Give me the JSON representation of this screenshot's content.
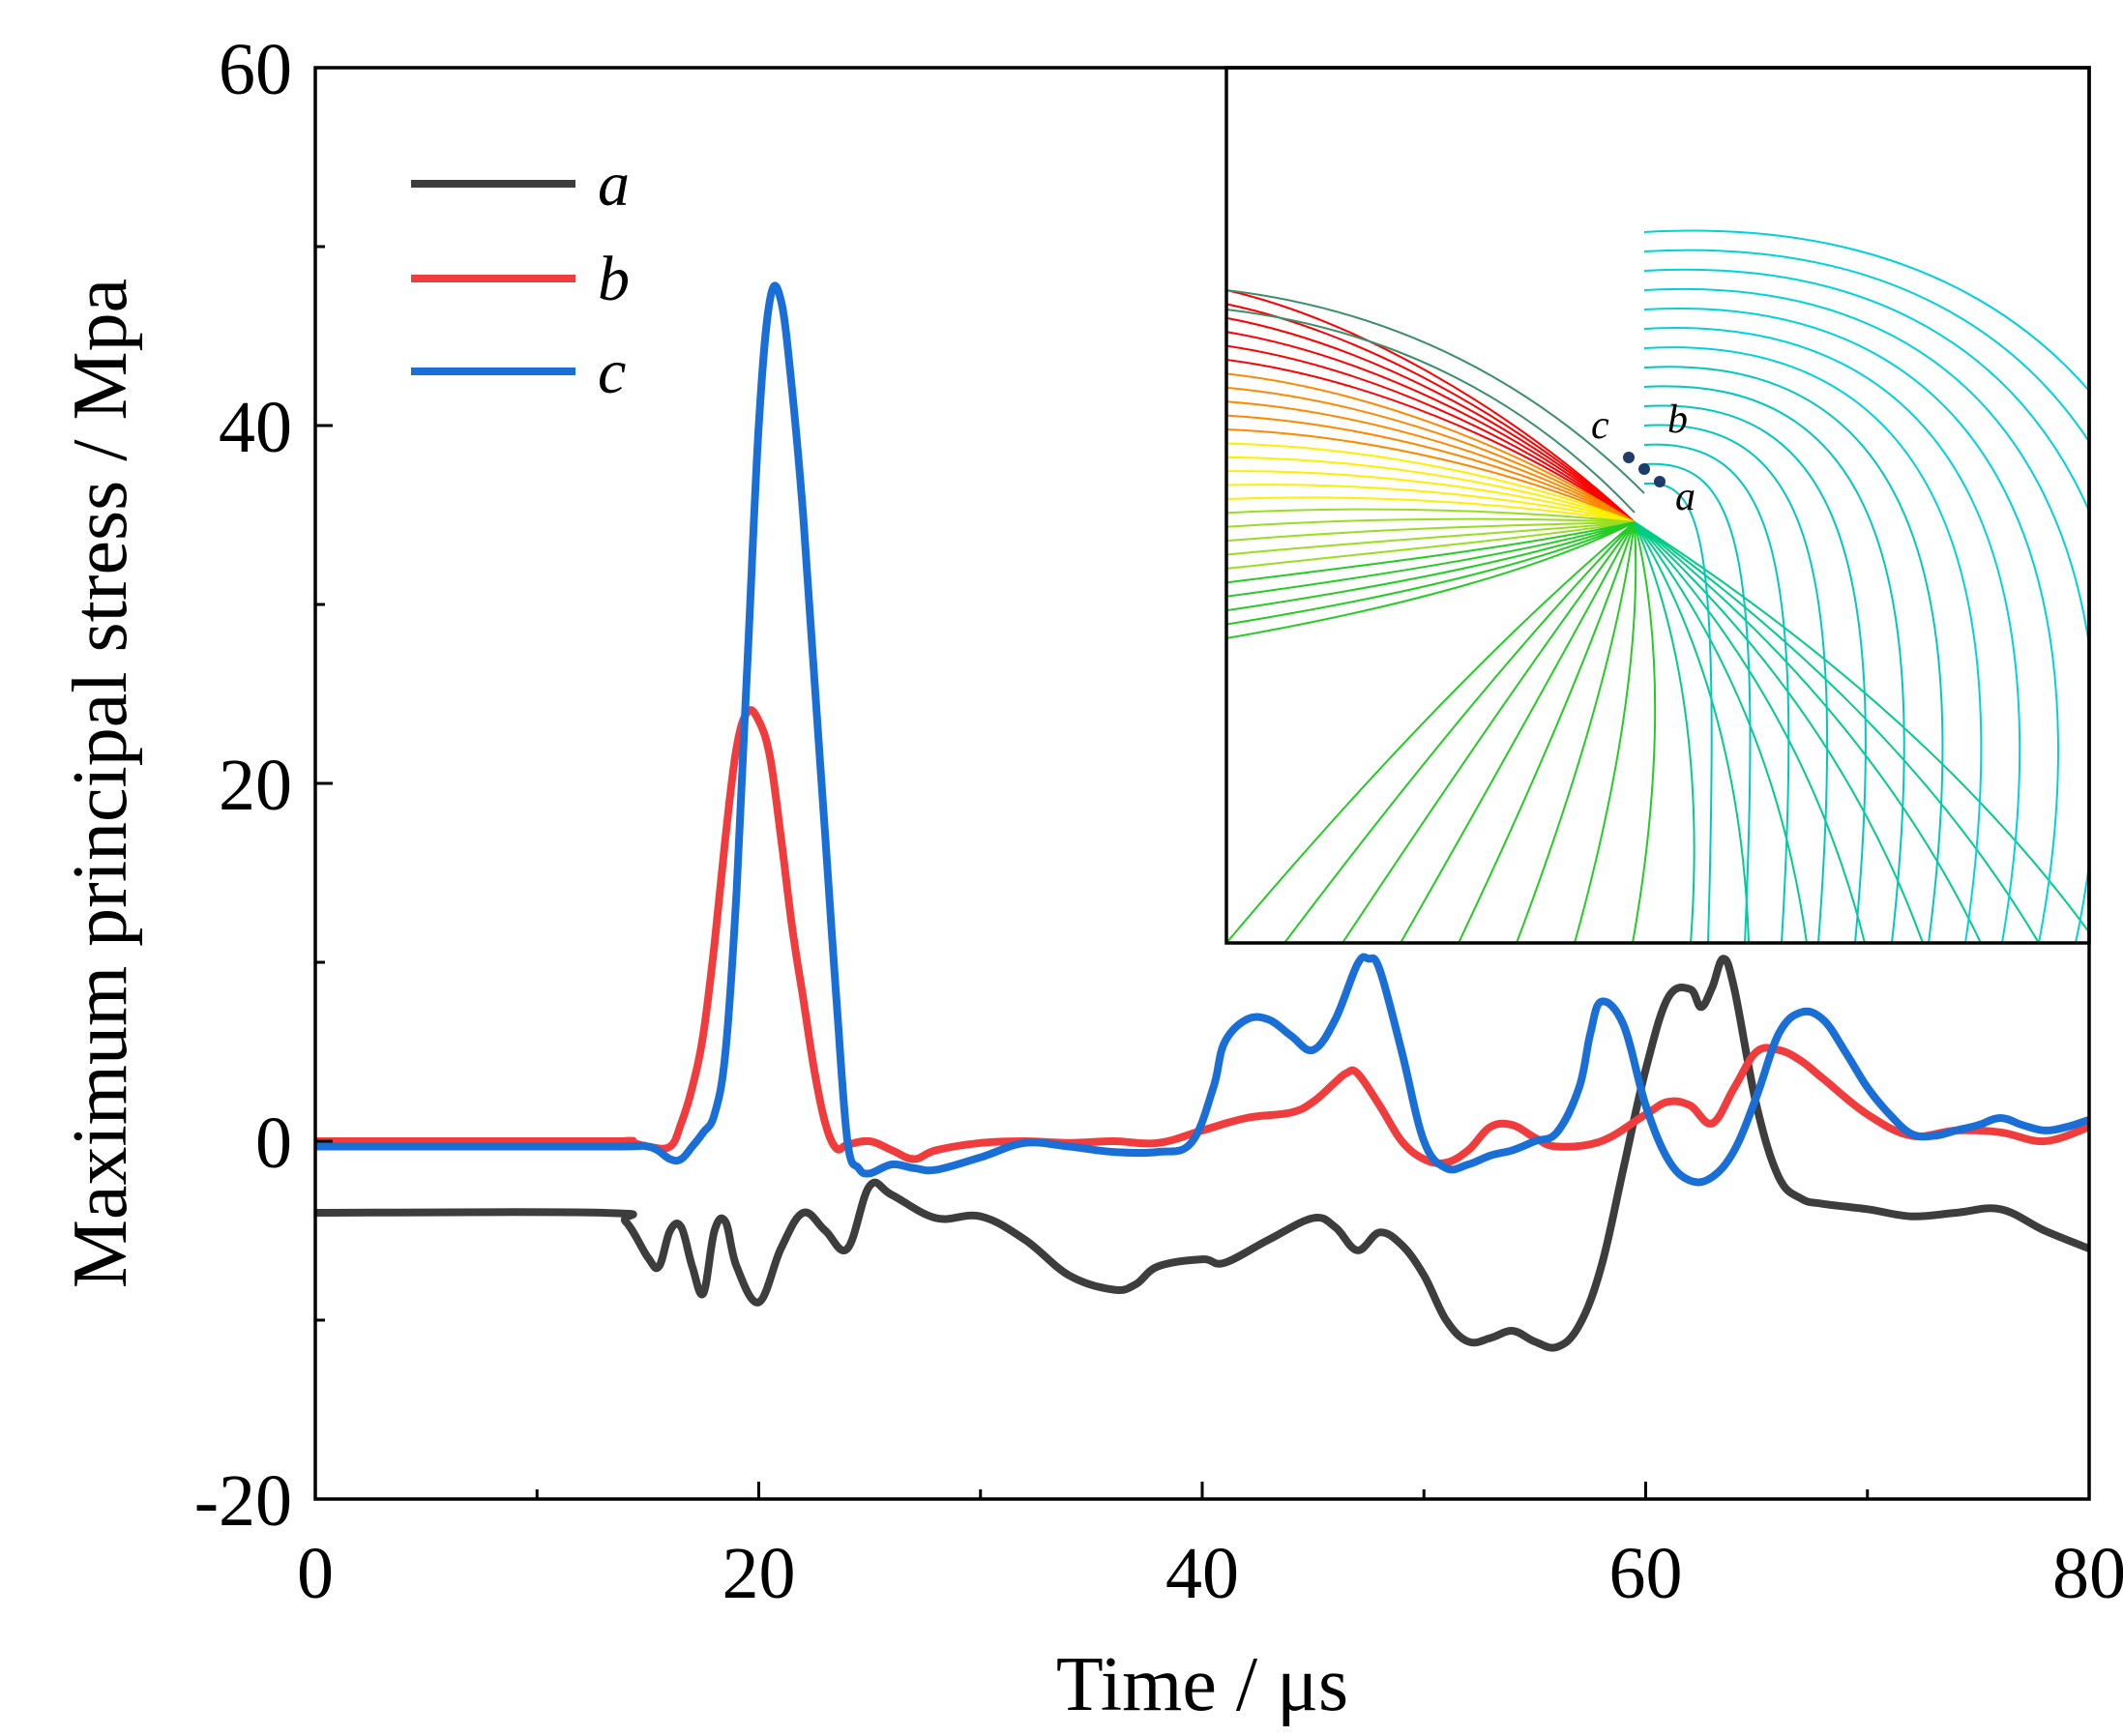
{
  "chart_data": {
    "type": "line",
    "xlabel": "Time / μs",
    "ylabel": "Maximum principal stress / Mpa",
    "xlim": [
      0,
      80
    ],
    "ylim": [
      -20,
      60
    ],
    "xticks": [
      "0",
      "20",
      "40",
      "60",
      "80"
    ],
    "yticks": [
      "-20",
      "0",
      "20",
      "40",
      "60"
    ],
    "grid": false,
    "legend_position": "top-left",
    "series": [
      {
        "name": "a",
        "color": "#3d3d3d",
        "x": [
          0,
          13,
          14,
          15,
          15.5,
          16,
          16.5,
          17,
          17.5,
          18,
          18.5,
          19,
          20,
          21,
          22,
          23,
          24,
          25,
          26,
          28,
          30,
          32,
          34,
          36,
          37,
          38,
          40,
          41,
          43,
          45,
          46,
          47,
          48,
          49,
          50,
          51,
          52,
          53,
          54,
          55,
          56,
          57,
          58,
          59,
          60,
          61,
          62,
          62.5,
          63,
          63.5,
          64,
          65,
          66,
          67,
          68,
          70,
          72,
          74,
          76,
          78,
          80
        ],
        "y": [
          -4,
          -4,
          -4.5,
          -6.5,
          -7,
          -5,
          -4.8,
          -7,
          -8.5,
          -5,
          -4.5,
          -7,
          -9,
          -6,
          -4,
          -5,
          -6,
          -2.5,
          -3,
          -4.3,
          -4.2,
          -5.5,
          -7.5,
          -8.3,
          -8.0,
          -7,
          -6.6,
          -6.8,
          -5.5,
          -4.3,
          -4.8,
          -6.1,
          -5.1,
          -5.8,
          -7.5,
          -10,
          -11.2,
          -11,
          -10.6,
          -11.2,
          -11.5,
          -10.3,
          -7,
          -1.5,
          4,
          8,
          8.5,
          7.5,
          8.6,
          10.2,
          8.5,
          2,
          -2,
          -3.2,
          -3.5,
          -3.8,
          -4.2,
          -4.0,
          -3.8,
          -5,
          -6
        ]
      },
      {
        "name": "b",
        "color": "#f03c3c",
        "x": [
          0,
          13,
          14,
          15,
          16,
          16.5,
          17,
          17.5,
          18,
          18.5,
          19,
          19.5,
          20,
          20.5,
          21,
          21.5,
          22,
          22.5,
          23,
          23.5,
          24,
          25,
          26,
          27,
          28,
          30,
          32,
          34,
          36,
          38,
          40,
          42,
          44,
          45,
          46,
          46.5,
          47,
          48,
          49,
          50,
          51,
          52,
          53,
          54,
          55,
          56,
          58,
          60,
          61,
          62,
          63,
          64,
          65,
          66,
          67,
          68,
          70,
          72,
          74,
          76,
          78,
          80
        ],
        "y": [
          0,
          0,
          0,
          -0.3,
          -0.3,
          1,
          3,
          6,
          11,
          17,
          22,
          24,
          23.5,
          21.5,
          17,
          12,
          8,
          4,
          1,
          -0.4,
          -0.2,
          0,
          -0.5,
          -1,
          -0.5,
          -0.1,
          0,
          -0.1,
          0,
          -0.1,
          0.6,
          1.3,
          1.6,
          2.2,
          3.3,
          3.8,
          3.8,
          2,
          0,
          -1,
          -1.2,
          -0.5,
          0.8,
          0.9,
          0.2,
          -0.3,
          0,
          1.5,
          2.2,
          2.0,
          1.0,
          3.0,
          5.0,
          5.1,
          4.5,
          3.5,
          1.5,
          0.3,
          0.6,
          0.5,
          0,
          0.8
        ]
      },
      {
        "name": "c",
        "color": "#1a6fd6",
        "x": [
          0,
          13,
          15,
          16,
          16.5,
          17,
          17.5,
          18,
          18.5,
          19,
          19.5,
          20,
          20.5,
          21,
          21.5,
          22,
          22.5,
          23,
          23.5,
          24,
          24.5,
          25,
          26,
          27,
          28,
          30,
          32,
          34,
          36,
          38,
          39.5,
          40.5,
          41,
          42,
          43,
          44,
          45,
          46,
          47,
          47.5,
          48,
          49,
          50,
          51,
          52,
          53,
          54,
          55,
          56,
          57,
          57.5,
          58,
          59,
          60,
          61,
          62,
          63,
          64,
          65,
          66,
          67,
          68,
          69,
          70,
          71,
          72,
          73,
          74,
          75,
          76,
          77,
          78,
          79,
          80
        ],
        "y": [
          -0.3,
          -0.3,
          -0.3,
          -1,
          -1,
          -0.3,
          0.5,
          1.5,
          5,
          14,
          27,
          40,
          47,
          47,
          42,
          35,
          26,
          17,
          8,
          0,
          -1.5,
          -1.8,
          -1.3,
          -1.5,
          -1.6,
          -0.9,
          -0.1,
          -0.3,
          -0.6,
          -0.6,
          -0.1,
          3,
          5.5,
          6.8,
          6.8,
          5.9,
          5.1,
          6.8,
          9.9,
          10.2,
          9.6,
          5,
          0,
          -1.5,
          -1.3,
          -0.8,
          -0.5,
          0,
          0.5,
          3,
          6,
          7.8,
          6.5,
          2,
          -1,
          -2.2,
          -2.0,
          -0.5,
          2.5,
          6,
          7.2,
          6.8,
          5.0,
          3.0,
          1.5,
          0.4,
          0.3,
          0.6,
          0.9,
          1.3,
          0.9,
          0.6,
          0.8,
          1.2
        ]
      }
    ],
    "inset": {
      "type": "contour",
      "point_labels": [
        "c",
        "b",
        "a"
      ],
      "colormap": [
        "#ff0000",
        "#ff8800",
        "#ffee00",
        "#99dd22",
        "#22cc22",
        "#00cc88",
        "#00cccc"
      ]
    }
  }
}
